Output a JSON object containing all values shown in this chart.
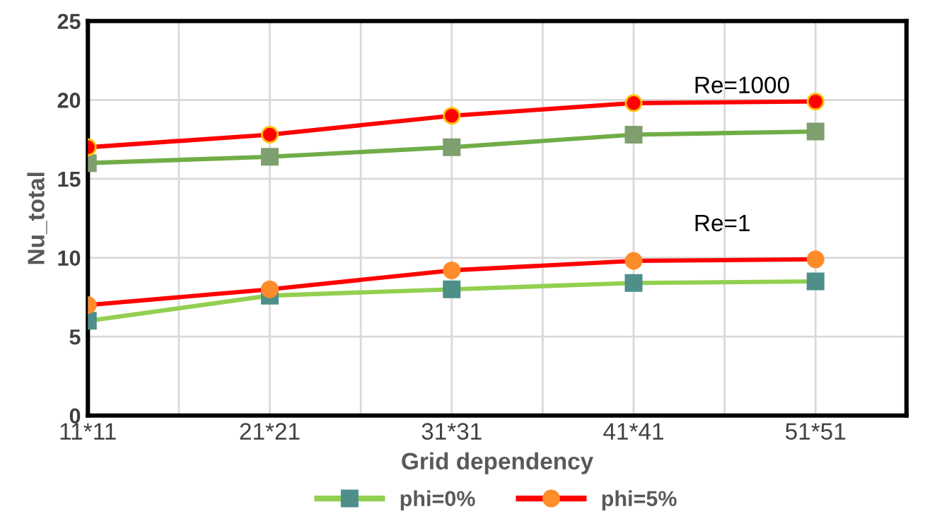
{
  "chart_data": {
    "type": "line",
    "xlabel": "Grid dependency",
    "ylabel": "Nu_total",
    "categories": [
      "11*11",
      "21*21",
      "31*31",
      "41*41",
      "51*51"
    ],
    "series": [
      {
        "color": "#70ad47",
        "colors": [
          "#7f9f6f",
          "#7f9f6f",
          "#7f9f6f",
          "#7f9f6f",
          "#7f9f6f"
        ],
        "marker": "square",
        "values": [
          16.0,
          16.4,
          17.0,
          17.8,
          18.0
        ]
      },
      {
        "color": "#ff0000",
        "colors": [
          "#ff0000",
          "#ff0000",
          "#ff0000",
          "#ff0000",
          "#ff0000"
        ],
        "marker": "circle",
        "values": [
          17.0,
          17.8,
          19.0,
          19.8,
          19.9
        ]
      },
      {
        "name": "phi=0%",
        "color": "#92d050",
        "colors": [
          "#4e8f8a",
          "#4e8f8a",
          "#4e8f8a",
          "#4e8f8a",
          "#4e8f8a"
        ],
        "marker": "square",
        "values": [
          6.0,
          7.6,
          8.0,
          8.4,
          8.5
        ]
      },
      {
        "name": "phi=5%",
        "color": "#ff0000",
        "colors": [
          "#ff8c2a",
          "#ff8c2a",
          "#ff8c2a",
          "#ff8c2a",
          "#ff8c2a"
        ],
        "marker": "circle",
        "values": [
          7.0,
          8.0,
          9.2,
          9.8,
          9.9
        ]
      }
    ],
    "annotations": [
      "Re=1000",
      "Re=1"
    ],
    "ylim": [
      0,
      25
    ],
    "yticks": [
      0,
      5,
      10,
      15,
      20,
      25
    ],
    "grid": true,
    "legend": "bottom",
    "line_style": "solid"
  }
}
